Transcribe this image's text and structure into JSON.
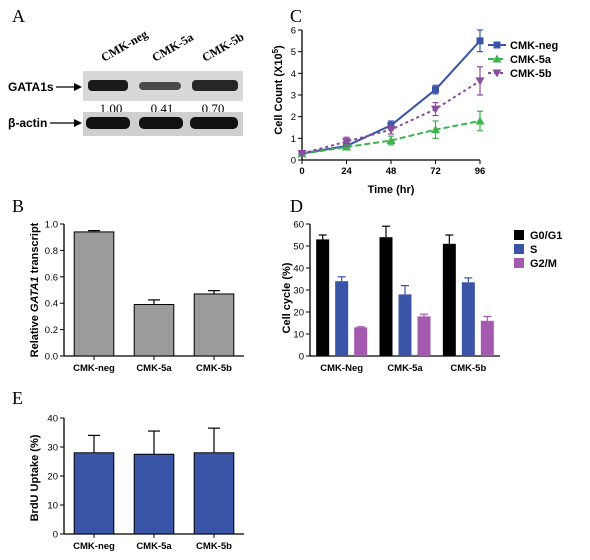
{
  "colors": {
    "grey_bar": "#9b9b9b",
    "blue": "#3a55a8",
    "green": "#3cb54a",
    "purple": "#8a4c9c",
    "black": "#000000",
    "magenta": "#a45aae"
  },
  "panel_a": {
    "letter": "A",
    "lanes": [
      "CMK-neg",
      "CMK-5a",
      "CMK-5b"
    ],
    "row1_label": "GATA1s",
    "row2_label": "β-actin",
    "densities": [
      "1.00",
      "0.41",
      "0.70"
    ]
  },
  "chart_data": [
    {
      "panel": "C",
      "letter": "C",
      "type": "line",
      "x": [
        0,
        24,
        48,
        72,
        96
      ],
      "xticks": [
        "0",
        "24",
        "48",
        "72",
        "96"
      ],
      "yticks": [
        "0",
        "1",
        "2",
        "3",
        "4",
        "5",
        "6"
      ],
      "xlabel": "Time (hr)",
      "ylabel_main": "Cell Count (X10",
      "ylabel_sup": "5",
      "ylabel_end": ")",
      "xlim": [
        0,
        96
      ],
      "ylim": [
        0,
        6
      ],
      "legend_position": "top-right",
      "series": [
        {
          "name": "CMK-neg",
          "values": [
            0.3,
            0.65,
            1.6,
            3.25,
            5.5
          ],
          "errors": [
            0.05,
            0.1,
            0.2,
            0.2,
            0.5
          ],
          "color": "#3a55a8",
          "marker": "square",
          "dash": "solid"
        },
        {
          "name": "CMK-5a",
          "values": [
            0.28,
            0.6,
            0.9,
            1.4,
            1.8
          ],
          "errors": [
            0.05,
            0.1,
            0.2,
            0.4,
            0.45
          ],
          "color": "#3cb54a",
          "marker": "triangle-up",
          "dash": "dashed"
        },
        {
          "name": "CMK-5b",
          "values": [
            0.3,
            0.85,
            1.4,
            2.35,
            3.65
          ],
          "errors": [
            0.05,
            0.2,
            0.2,
            0.3,
            0.65
          ],
          "color": "#8a4c9c",
          "marker": "triangle-down",
          "dash": "dotted"
        }
      ]
    },
    {
      "panel": "B",
      "letter": "B",
      "type": "bar",
      "categories": [
        "CMK-neg",
        "CMK-5a",
        "CMK-5b"
      ],
      "values": [
        0.94,
        0.39,
        0.47
      ],
      "errors": [
        0.01,
        0.035,
        0.025
      ],
      "yticks": [
        "0.0",
        "0.2",
        "0.4",
        "0.6",
        "0.8",
        "1.0"
      ],
      "ylim": [
        0,
        1.0
      ],
      "ylabel_pre": "Relative ",
      "ylabel_italic": "GATA1",
      "ylabel_post": " transcript",
      "color": "#9b9b9b"
    },
    {
      "panel": "D",
      "letter": "D",
      "type": "bar",
      "categories": [
        "CMK-Neg",
        "CMK-5a",
        "CMK-5b"
      ],
      "yticks": [
        "0",
        "10",
        "20",
        "30",
        "40",
        "50",
        "60"
      ],
      "ylim": [
        0,
        60
      ],
      "ylabel": "Cell cycle (%)",
      "legend_position": "right",
      "series": [
        {
          "name": "G0/G1",
          "values": [
            53,
            54,
            51
          ],
          "errors": [
            2,
            5,
            4
          ],
          "color": "#000000"
        },
        {
          "name": "S",
          "values": [
            34,
            28,
            33.5
          ],
          "errors": [
            2,
            4,
            2
          ],
          "color": "#3a55a8"
        },
        {
          "name": "G2/M",
          "values": [
            13,
            18,
            16
          ],
          "errors": [
            0.3,
            1,
            2
          ],
          "color": "#a45aae"
        }
      ]
    },
    {
      "panel": "E",
      "letter": "E",
      "type": "bar",
      "categories": [
        "CMK-neg",
        "CMK-5a",
        "CMK-5b"
      ],
      "values": [
        28,
        27.5,
        28
      ],
      "errors": [
        6,
        8,
        8.5
      ],
      "yticks": [
        "0",
        "10",
        "20",
        "30",
        "40"
      ],
      "ylim": [
        0,
        40
      ],
      "ylabel": "BrdU Uptake (%)",
      "color": "#3a55a8"
    }
  ]
}
